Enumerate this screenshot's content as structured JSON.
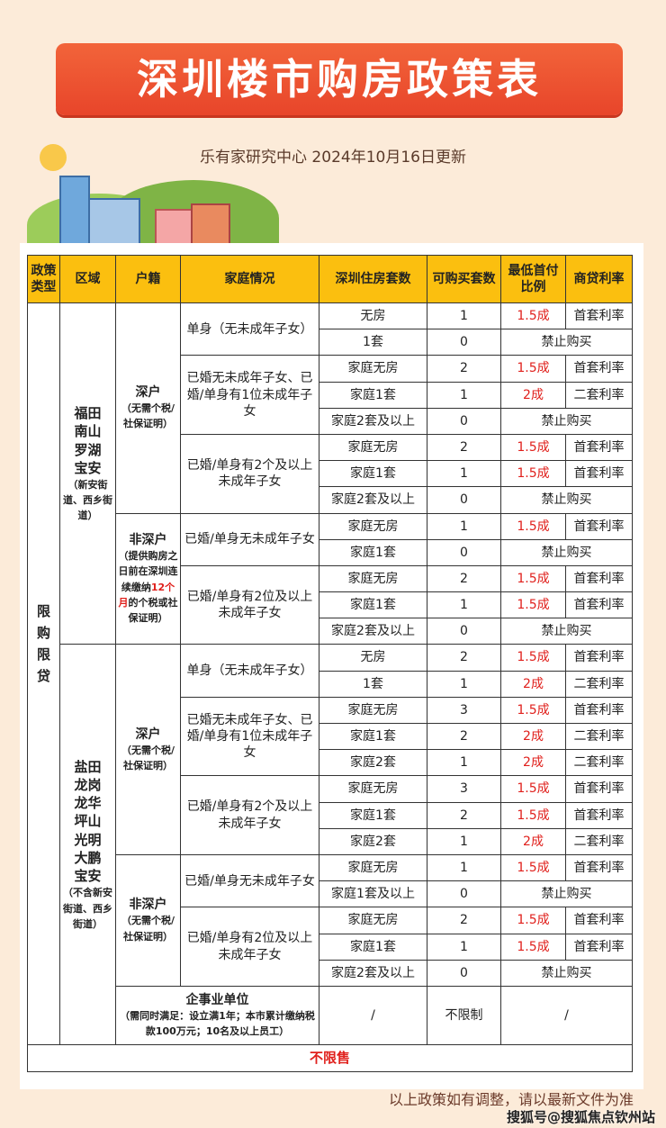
{
  "title": "深圳楼市购房政策表",
  "subtitle": "乐有家研究中心 2024年10月16日更新",
  "colors": {
    "banner": "#e8452a",
    "header_bg": "#fbbf0f",
    "highlight": "#e0201c",
    "page_bg": "#fcebd9"
  },
  "table": {
    "headers": [
      "政策类型",
      "区域",
      "户籍",
      "家庭情况",
      "深圳住房套数",
      "可购买套数",
      "最低首付比例",
      "商贷利率"
    ],
    "policy_type": "限购限贷",
    "regions": [
      {
        "name": "福田南山罗湖宝安",
        "note": "（新安街道、西乡街道）",
        "hukou": [
          {
            "name": "深户",
            "note_parts": [
              "（无需个税/社保证明）"
            ],
            "families": [
              {
                "desc": "单身（无未成年子女）",
                "rows": [
                  [
                    "无房",
                    "1",
                    "1.5成",
                    "首套利率"
                  ],
                  [
                    "1套",
                    "0",
                    "禁止购买",
                    ""
                  ]
                ]
              },
              {
                "desc": "已婚无未成年子女、已婚/单身有1位未成年子女",
                "rows": [
                  [
                    "家庭无房",
                    "2",
                    "1.5成",
                    "首套利率"
                  ],
                  [
                    "家庭1套",
                    "1",
                    "2成",
                    "二套利率"
                  ],
                  [
                    "家庭2套及以上",
                    "0",
                    "禁止购买",
                    ""
                  ]
                ]
              },
              {
                "desc": "已婚/单身有2个及以上未成年子女",
                "rows": [
                  [
                    "家庭无房",
                    "2",
                    "1.5成",
                    "首套利率"
                  ],
                  [
                    "家庭1套",
                    "1",
                    "1.5成",
                    "首套利率"
                  ],
                  [
                    "家庭2套及以上",
                    "0",
                    "禁止购买",
                    ""
                  ]
                ]
              }
            ]
          },
          {
            "name": "非深户",
            "note_parts": [
              "（提供购房之日前在深圳连续缴纳",
              "12个月",
              "的个税或社保证明）"
            ],
            "families": [
              {
                "desc": "已婚/单身无未成年子女",
                "rows": [
                  [
                    "家庭无房",
                    "1",
                    "1.5成",
                    "首套利率"
                  ],
                  [
                    "家庭1套",
                    "0",
                    "禁止购买",
                    ""
                  ]
                ]
              },
              {
                "desc": "已婚/单身有2位及以上未成年子女",
                "rows": [
                  [
                    "家庭无房",
                    "2",
                    "1.5成",
                    "首套利率"
                  ],
                  [
                    "家庭1套",
                    "1",
                    "1.5成",
                    "首套利率"
                  ],
                  [
                    "家庭2套及以上",
                    "0",
                    "禁止购买",
                    ""
                  ]
                ]
              }
            ]
          }
        ]
      },
      {
        "name": "盐田龙岗龙华坪山光明大鹏宝安",
        "note": "（不含新安街道、西乡街道）",
        "hukou": [
          {
            "name": "深户",
            "note_parts": [
              "（无需个税/社保证明）"
            ],
            "families": [
              {
                "desc": "单身（无未成年子女）",
                "rows": [
                  [
                    "无房",
                    "2",
                    "1.5成",
                    "首套利率"
                  ],
                  [
                    "1套",
                    "1",
                    "2成",
                    "二套利率"
                  ]
                ]
              },
              {
                "desc": "已婚无未成年子女、已婚/单身有1位未成年子女",
                "rows": [
                  [
                    "家庭无房",
                    "3",
                    "1.5成",
                    "首套利率"
                  ],
                  [
                    "家庭1套",
                    "2",
                    "2成",
                    "二套利率"
                  ],
                  [
                    "家庭2套",
                    "1",
                    "2成",
                    "二套利率"
                  ]
                ]
              },
              {
                "desc": "已婚/单身有2个及以上未成年子女",
                "rows": [
                  [
                    "家庭无房",
                    "3",
                    "1.5成",
                    "首套利率"
                  ],
                  [
                    "家庭1套",
                    "2",
                    "1.5成",
                    "首套利率"
                  ],
                  [
                    "家庭2套",
                    "1",
                    "2成",
                    "二套利率"
                  ]
                ]
              }
            ]
          },
          {
            "name": "非深户",
            "note_parts": [
              "（无需个税/社保证明）"
            ],
            "families": [
              {
                "desc": "已婚/单身无未成年子女",
                "rows": [
                  [
                    "家庭无房",
                    "1",
                    "1.5成",
                    "首套利率"
                  ],
                  [
                    "家庭1套及以上",
                    "0",
                    "禁止购买",
                    ""
                  ]
                ]
              },
              {
                "desc": "已婚/单身有2位及以上未成年子女",
                "rows": [
                  [
                    "家庭无房",
                    "2",
                    "1.5成",
                    "首套利率"
                  ],
                  [
                    "家庭1套",
                    "1",
                    "1.5成",
                    "首套利率"
                  ],
                  [
                    "家庭2套及以上",
                    "0",
                    "禁止购买",
                    ""
                  ]
                ]
              }
            ]
          }
        ]
      }
    ],
    "enterprise": {
      "name": "企事业单位",
      "note": "（需同时满足：设立满1年；本市累计缴纳税款100万元；10名及以上员工）",
      "housing": "/",
      "count": "不限制",
      "terms": "/"
    },
    "footer": "不限售"
  },
  "disclaimer": "以上政策如有调整，请以最新文件为准",
  "source_watermark": "搜狐号@搜狐焦点钦州站"
}
